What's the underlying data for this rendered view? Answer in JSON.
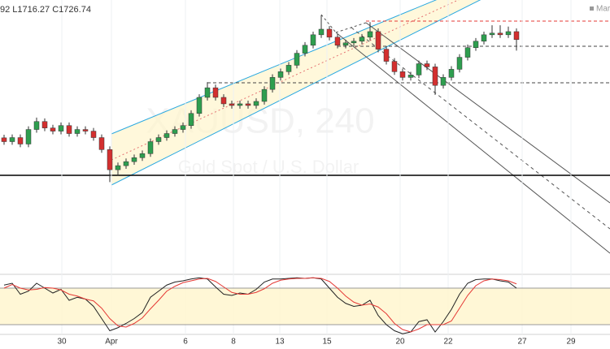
{
  "header": {
    "ohlc_text": "92  L1716.27  C1726.74",
    "marker": "Mark"
  },
  "watermark": {
    "symbol": "XAUUSD, 240",
    "description": "Gold Spot / U.S. Dollar"
  },
  "chart_data": [
    {
      "type": "candlestick",
      "xlim": [
        -0.5,
        74.5
      ],
      "ylim": [
        1600,
        1815
      ],
      "up_color": "#2e9e4f",
      "down_color": "#d32f2f",
      "xticks": [
        {
          "value": 7.1,
          "label": "30"
        },
        {
          "value": 13.2,
          "label": "Apr"
        },
        {
          "value": 22.3,
          "label": "6"
        },
        {
          "value": 28.2,
          "label": "8"
        },
        {
          "value": 33.9,
          "label": "13"
        },
        {
          "value": 39.7,
          "label": "15"
        },
        {
          "value": 48.7,
          "label": "20"
        },
        {
          "value": 54.6,
          "label": "22"
        },
        {
          "value": 63.7,
          "label": "27"
        },
        {
          "value": 69.7,
          "label": "29"
        }
      ],
      "open": [
        1706.0,
        1703.0,
        1706.2,
        1701.1,
        1712.6,
        1718.9,
        1713.8,
        1711.3,
        1715.7,
        1709.4,
        1712.6,
        1711.3,
        1706.2,
        1696.7,
        1680.8,
        1684.0,
        1687.2,
        1690.3,
        1693.5,
        1703.0,
        1706.2,
        1709.4,
        1712.6,
        1715.7,
        1725.3,
        1738.0,
        1745.6,
        1738.0,
        1732.9,
        1731.6,
        1732.9,
        1731.6,
        1734.8,
        1744.3,
        1753.8,
        1758.3,
        1763.4,
        1772.9,
        1779.2,
        1787.5,
        1791.9,
        1785.6,
        1779.2,
        1781.1,
        1782.4,
        1785.6,
        1790.0,
        1776.1,
        1766.5,
        1758.3,
        1753.8,
        1755.7,
        1764.6,
        1762.1,
        1747.5,
        1753.8,
        1760.2,
        1769.7,
        1777.3,
        1782.4,
        1787.5,
        1788.8,
        1787.5,
        1790.0
      ],
      "high": [
        1708.5,
        1708.7,
        1708.7,
        1715.1,
        1722.0,
        1721.4,
        1716.3,
        1718.2,
        1718.2,
        1715.1,
        1715.1,
        1713.8,
        1708.7,
        1699.2,
        1686.5,
        1689.7,
        1692.8,
        1696.0,
        1705.5,
        1708.7,
        1711.9,
        1715.1,
        1718.2,
        1727.8,
        1740.5,
        1750.0,
        1748.1,
        1740.5,
        1735.4,
        1735.4,
        1735.4,
        1737.3,
        1746.8,
        1756.3,
        1760.8,
        1765.9,
        1775.4,
        1781.7,
        1790.0,
        1803.0,
        1794.4,
        1788.1,
        1783.6,
        1784.9,
        1788.1,
        1797.5,
        1792.5,
        1778.6,
        1769.0,
        1760.8,
        1758.2,
        1767.1,
        1767.1,
        1764.6,
        1756.3,
        1762.7,
        1772.2,
        1779.8,
        1784.9,
        1790.0,
        1795.0,
        1795.0,
        1794.0,
        1792.5
      ],
      "low": [
        1700.5,
        1700.5,
        1698.6,
        1698.6,
        1710.1,
        1711.3,
        1708.8,
        1708.8,
        1706.9,
        1706.9,
        1708.8,
        1703.7,
        1694.2,
        1671.0,
        1676.0,
        1681.5,
        1684.7,
        1687.8,
        1691.0,
        1700.5,
        1703.7,
        1706.9,
        1710.1,
        1713.2,
        1722.8,
        1735.5,
        1735.5,
        1730.4,
        1729.1,
        1729.1,
        1729.1,
        1729.1,
        1732.3,
        1741.8,
        1751.3,
        1755.8,
        1760.9,
        1770.4,
        1776.7,
        1785.0,
        1783.1,
        1776.7,
        1776.7,
        1778.6,
        1779.9,
        1783.1,
        1773.6,
        1764.0,
        1755.8,
        1751.3,
        1751.3,
        1753.2,
        1759.6,
        1740.0,
        1745.0,
        1751.3,
        1757.7,
        1767.2,
        1774.8,
        1779.9,
        1785.0,
        1785.0,
        1785.0,
        1775.0
      ],
      "close": [
        1703.0,
        1706.2,
        1701.1,
        1712.6,
        1718.9,
        1713.8,
        1711.3,
        1715.7,
        1709.4,
        1712.6,
        1711.3,
        1706.2,
        1696.7,
        1680.8,
        1684.0,
        1687.2,
        1690.3,
        1693.5,
        1703.0,
        1706.2,
        1709.4,
        1712.6,
        1715.7,
        1725.3,
        1738.0,
        1745.6,
        1738.0,
        1732.9,
        1731.6,
        1732.9,
        1731.6,
        1734.8,
        1744.3,
        1753.8,
        1758.3,
        1763.4,
        1772.9,
        1779.2,
        1787.5,
        1791.9,
        1785.6,
        1779.2,
        1781.1,
        1782.4,
        1785.6,
        1790.0,
        1776.1,
        1766.5,
        1758.3,
        1753.8,
        1755.7,
        1764.6,
        1762.1,
        1747.5,
        1753.8,
        1760.2,
        1769.7,
        1777.3,
        1782.4,
        1787.5,
        1788.8,
        1787.5,
        1790.0,
        1783.7
      ]
    },
    {
      "type": "line",
      "xlim": [
        -0.5,
        74.5
      ],
      "ylim": [
        0,
        100
      ],
      "yticks": [
        20,
        80
      ],
      "series": [
        {
          "color": "#222222",
          "values": [
            85,
            88,
            70,
            75,
            88,
            80,
            72,
            78,
            60,
            65,
            62,
            50,
            30,
            10,
            15,
            22,
            30,
            40,
            65,
            75,
            85,
            90,
            92,
            95,
            97,
            95,
            82,
            70,
            68,
            72,
            70,
            78,
            90,
            95,
            95,
            96,
            97,
            96,
            97,
            95,
            80,
            65,
            55,
            50,
            52,
            60,
            35,
            20,
            10,
            5,
            8,
            25,
            28,
            8,
            25,
            45,
            70,
            88,
            94,
            95,
            95,
            92,
            90,
            80
          ]
        },
        {
          "color": "#e53935",
          "values": [
            80,
            86,
            80,
            77,
            78,
            81,
            80,
            77,
            70,
            67,
            62,
            59,
            47,
            30,
            18,
            16,
            22,
            31,
            46,
            60,
            75,
            83,
            89,
            92,
            95,
            96,
            91,
            82,
            73,
            70,
            70,
            73,
            79,
            88,
            93,
            95,
            96,
            96,
            97,
            96,
            91,
            80,
            67,
            57,
            52,
            54,
            49,
            38,
            22,
            12,
            8,
            13,
            20,
            20,
            20,
            26,
            47,
            68,
            84,
            92,
            95,
            94,
            92,
            87
          ]
        }
      ]
    }
  ]
}
